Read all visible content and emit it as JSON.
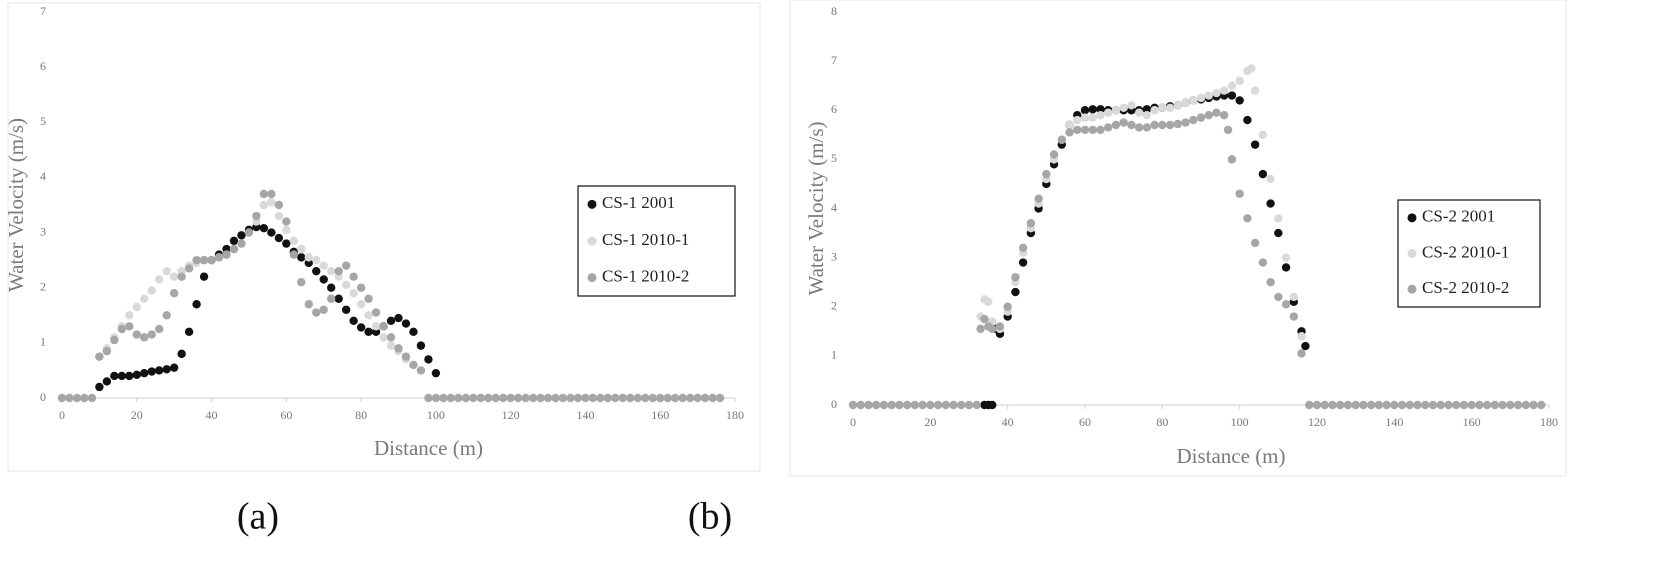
{
  "chart_data": [
    {
      "type": "scatter",
      "xlabel": "Distance (m)",
      "ylabel": "Water Velocity (m/s)",
      "caption": "(a)",
      "xlim": [
        0,
        180
      ],
      "xticks": [
        0,
        20,
        40,
        60,
        80,
        100,
        120,
        140,
        160,
        180
      ],
      "ylim": [
        0,
        7
      ],
      "yticks": [
        0,
        1,
        2,
        3,
        4,
        5,
        6,
        7
      ],
      "grid": false,
      "legend": "right",
      "series": [
        {
          "name": "CS-1 2001",
          "color": "#111111",
          "x": [
            10,
            12,
            14,
            16,
            18,
            20,
            22,
            24,
            26,
            28,
            30,
            32,
            34,
            36,
            38,
            40,
            42,
            44,
            46,
            48,
            50,
            52,
            54,
            56,
            58,
            60,
            62,
            64,
            66,
            68,
            70,
            72,
            74,
            76,
            78,
            80,
            82,
            84,
            86,
            88,
            90,
            92,
            94,
            96,
            98,
            100
          ],
          "values": [
            0.2,
            0.3,
            0.4,
            0.4,
            0.4,
            0.42,
            0.45,
            0.48,
            0.5,
            0.52,
            0.55,
            0.8,
            1.2,
            1.7,
            2.2,
            2.5,
            2.6,
            2.7,
            2.85,
            2.95,
            3.05,
            3.1,
            3.08,
            3.0,
            2.9,
            2.8,
            2.65,
            2.55,
            2.45,
            2.3,
            2.15,
            2.0,
            1.8,
            1.6,
            1.4,
            1.28,
            1.2,
            1.2,
            1.3,
            1.4,
            1.45,
            1.35,
            1.2,
            0.95,
            0.7,
            0.45
          ]
        },
        {
          "name": "CS-1 2010-1",
          "color": "#d9d9d9",
          "x": [
            10,
            12,
            14,
            16,
            18,
            20,
            22,
            24,
            26,
            28,
            30,
            32,
            34,
            36,
            38,
            40,
            42,
            44,
            46,
            48,
            50,
            52,
            54,
            56,
            58,
            60,
            62,
            64,
            66,
            68,
            70,
            72,
            74,
            76,
            78,
            80,
            82,
            84,
            86,
            88,
            90,
            92,
            94,
            96
          ],
          "values": [
            0.75,
            0.9,
            1.1,
            1.3,
            1.5,
            1.65,
            1.8,
            1.95,
            2.15,
            2.3,
            2.2,
            2.3,
            2.4,
            2.45,
            2.5,
            2.5,
            2.55,
            2.6,
            2.7,
            2.8,
            3.0,
            3.2,
            3.5,
            3.55,
            3.3,
            3.05,
            2.85,
            2.7,
            2.55,
            2.5,
            2.4,
            2.3,
            2.2,
            2.05,
            1.9,
            1.7,
            1.5,
            1.3,
            1.1,
            0.95,
            0.85,
            0.7,
            0.6,
            0.5
          ]
        },
        {
          "name": "CS-1 2010-2",
          "color": "#a6a6a6",
          "x": [
            0,
            2,
            4,
            6,
            8,
            10,
            12,
            14,
            16,
            18,
            20,
            22,
            24,
            26,
            28,
            30,
            32,
            34,
            36,
            38,
            40,
            42,
            44,
            46,
            48,
            50,
            52,
            54,
            56,
            58,
            60,
            62,
            64,
            66,
            68,
            70,
            72,
            74,
            76,
            78,
            80,
            82,
            84,
            86,
            88,
            90,
            92,
            94,
            96,
            98,
            100,
            102,
            104,
            106,
            108,
            110,
            112,
            114,
            116,
            118,
            120,
            122,
            124,
            126,
            128,
            130,
            132,
            134,
            136,
            138,
            140,
            142,
            144,
            146,
            148,
            150,
            152,
            154,
            156,
            158,
            160,
            162,
            164,
            166,
            168,
            170,
            172,
            174,
            176
          ],
          "values": [
            0,
            0,
            0,
            0,
            0,
            0.75,
            0.85,
            1.05,
            1.25,
            1.3,
            1.15,
            1.1,
            1.15,
            1.25,
            1.5,
            1.9,
            2.2,
            2.35,
            2.5,
            2.5,
            2.5,
            2.55,
            2.6,
            2.7,
            2.8,
            3.0,
            3.3,
            3.7,
            3.7,
            3.5,
            3.2,
            2.6,
            2.1,
            1.7,
            1.55,
            1.6,
            1.8,
            2.3,
            2.4,
            2.2,
            2.0,
            1.8,
            1.55,
            1.3,
            1.1,
            0.9,
            0.75,
            0.6,
            0.5,
            0,
            0,
            0,
            0,
            0,
            0,
            0,
            0,
            0,
            0,
            0,
            0,
            0,
            0,
            0,
            0,
            0,
            0,
            0,
            0,
            0,
            0,
            0,
            0,
            0,
            0,
            0,
            0,
            0,
            0,
            0,
            0,
            0,
            0,
            0,
            0,
            0,
            0,
            0,
            0
          ]
        }
      ]
    },
    {
      "type": "scatter",
      "xlabel": "Distance (m)",
      "ylabel": "Water Velocity (m/s)",
      "caption": "(b)",
      "xlim": [
        0,
        180
      ],
      "xticks": [
        0,
        20,
        40,
        60,
        80,
        100,
        120,
        140,
        160,
        180
      ],
      "ylim": [
        0,
        8
      ],
      "yticks": [
        0,
        1,
        2,
        3,
        4,
        5,
        6,
        7,
        8
      ],
      "grid": false,
      "legend": "right",
      "series": [
        {
          "name": "CS-2 2001",
          "color": "#111111",
          "x": [
            34,
            35,
            36,
            37,
            38,
            40,
            42,
            44,
            46,
            48,
            50,
            52,
            54,
            56,
            58,
            60,
            62,
            64,
            66,
            68,
            70,
            72,
            74,
            76,
            78,
            80,
            82,
            84,
            86,
            88,
            90,
            92,
            94,
            96,
            98,
            100,
            102,
            104,
            106,
            108,
            110,
            112,
            114,
            116,
            117
          ],
          "values": [
            0,
            0,
            0,
            1.55,
            1.45,
            1.8,
            2.3,
            2.9,
            3.5,
            4.0,
            4.5,
            4.9,
            5.3,
            5.7,
            5.9,
            6.0,
            6.02,
            6.02,
            6.0,
            6.0,
            6.0,
            6.0,
            6.0,
            6.02,
            6.05,
            6.05,
            6.08,
            6.1,
            6.15,
            6.2,
            6.22,
            6.25,
            6.28,
            6.3,
            6.3,
            6.2,
            5.8,
            5.3,
            4.7,
            4.1,
            3.5,
            2.8,
            2.1,
            1.5,
            1.2
          ]
        },
        {
          "name": "CS-2 2010-1",
          "color": "#d9d9d9",
          "x": [
            33,
            34,
            35,
            36,
            38,
            40,
            42,
            44,
            46,
            48,
            50,
            52,
            54,
            56,
            58,
            60,
            62,
            64,
            66,
            68,
            70,
            72,
            74,
            76,
            78,
            80,
            82,
            84,
            86,
            88,
            90,
            92,
            94,
            96,
            98,
            100,
            102,
            103,
            104,
            106,
            108,
            110,
            112,
            114,
            116
          ],
          "values": [
            1.8,
            2.15,
            2.1,
            1.7,
            1.55,
            1.9,
            2.5,
            3.1,
            3.6,
            4.1,
            4.6,
            5.0,
            5.4,
            5.7,
            5.8,
            5.85,
            5.85,
            5.9,
            5.95,
            6.0,
            6.05,
            6.1,
            5.95,
            5.9,
            6.0,
            6.05,
            6.05,
            6.1,
            6.15,
            6.2,
            6.25,
            6.3,
            6.35,
            6.4,
            6.5,
            6.6,
            6.8,
            6.85,
            6.4,
            5.5,
            4.6,
            3.8,
            3.0,
            2.2,
            1.4
          ]
        },
        {
          "name": "CS-2 2010-2",
          "color": "#a6a6a6",
          "x": [
            0,
            2,
            4,
            6,
            8,
            10,
            12,
            14,
            16,
            18,
            20,
            22,
            24,
            26,
            28,
            30,
            32,
            33,
            34,
            35,
            36,
            38,
            40,
            42,
            44,
            46,
            48,
            50,
            52,
            54,
            56,
            58,
            60,
            62,
            64,
            66,
            68,
            70,
            72,
            74,
            76,
            78,
            80,
            82,
            84,
            86,
            88,
            90,
            92,
            94,
            96,
            97,
            98,
            100,
            102,
            104,
            106,
            108,
            110,
            112,
            114,
            116,
            118,
            120,
            122,
            124,
            126,
            128,
            130,
            132,
            134,
            136,
            138,
            140,
            142,
            144,
            146,
            148,
            150,
            152,
            154,
            156,
            158,
            160,
            162,
            164,
            166,
            168,
            170,
            172,
            174,
            176,
            178
          ],
          "values": [
            0,
            0,
            0,
            0,
            0,
            0,
            0,
            0,
            0,
            0,
            0,
            0,
            0,
            0,
            0,
            0,
            0,
            1.55,
            1.75,
            1.6,
            1.55,
            1.6,
            2.0,
            2.6,
            3.2,
            3.7,
            4.2,
            4.7,
            5.1,
            5.4,
            5.55,
            5.6,
            5.6,
            5.6,
            5.6,
            5.65,
            5.7,
            5.75,
            5.7,
            5.65,
            5.65,
            5.7,
            5.7,
            5.7,
            5.72,
            5.75,
            5.8,
            5.85,
            5.9,
            5.95,
            5.9,
            5.6,
            5.0,
            4.3,
            3.8,
            3.3,
            2.9,
            2.5,
            2.2,
            2.05,
            1.8,
            1.05,
            0,
            0,
            0,
            0,
            0,
            0,
            0,
            0,
            0,
            0,
            0,
            0,
            0,
            0,
            0,
            0,
            0,
            0,
            0,
            0,
            0,
            0,
            0,
            0,
            0,
            0,
            0,
            0,
            0,
            0,
            0
          ]
        }
      ]
    }
  ]
}
